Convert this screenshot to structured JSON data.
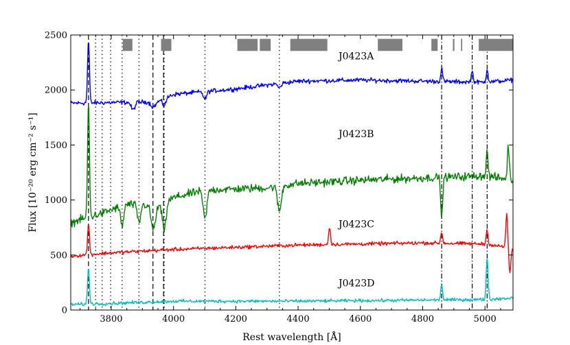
{
  "chart_data": {
    "type": "line",
    "title": "",
    "xlabel": "Rest wavelength [Å]",
    "ylabel": "Flux [10⁻²⁰ erg cm⁻² s⁻¹]",
    "xlim": [
      3670,
      5090
    ],
    "ylim": [
      0,
      2500
    ],
    "xticks": [
      3800,
      4000,
      4200,
      4400,
      4600,
      4800,
      5000
    ],
    "yticks": [
      0,
      500,
      1000,
      1500,
      2000,
      2500
    ],
    "grid": false,
    "series": [
      {
        "name": "J0423A",
        "color": "#0000ff",
        "label_at": {
          "x": 4530,
          "y": 2280
        },
        "baseline": [
          [
            3670,
            1880
          ],
          [
            3900,
            1890
          ],
          [
            3950,
            1900
          ],
          [
            4000,
            1960
          ],
          [
            4200,
            2010
          ],
          [
            4400,
            2080
          ],
          [
            4600,
            2090
          ],
          [
            4800,
            2080
          ],
          [
            5000,
            2070
          ],
          [
            5090,
            2090
          ]
        ],
        "noise": 30,
        "features": [
          {
            "x": 3727,
            "h": 570,
            "w": 3
          },
          {
            "x": 3870,
            "h": -70,
            "w": 6
          },
          {
            "x": 3935,
            "h": -50,
            "w": 8
          },
          {
            "x": 3970,
            "h": -60,
            "w": 6
          },
          {
            "x": 4101,
            "h": -70,
            "w": 5
          },
          {
            "x": 4340,
            "h": -40,
            "w": 5
          },
          {
            "x": 4861,
            "h": 120,
            "w": 3
          },
          {
            "x": 4959,
            "h": 100,
            "w": 3
          },
          {
            "x": 5007,
            "h": 120,
            "w": 3
          }
        ]
      },
      {
        "name": "J0423B",
        "color": "#008000",
        "label_at": {
          "x": 4530,
          "y": 1570
        },
        "baseline": [
          [
            3670,
            790
          ],
          [
            3700,
            820
          ],
          [
            3760,
            870
          ],
          [
            3850,
            960
          ],
          [
            3950,
            950
          ],
          [
            4000,
            1020
          ],
          [
            4100,
            1090
          ],
          [
            4300,
            1110
          ],
          [
            4400,
            1150
          ],
          [
            4600,
            1180
          ],
          [
            4800,
            1200
          ],
          [
            5000,
            1220
          ],
          [
            5090,
            1180
          ]
        ],
        "noise": 55,
        "features": [
          {
            "x": 3727,
            "h": 1050,
            "w": 3
          },
          {
            "x": 3835,
            "h": -180,
            "w": 5
          },
          {
            "x": 3889,
            "h": -170,
            "w": 5
          },
          {
            "x": 3935,
            "h": -220,
            "w": 7
          },
          {
            "x": 3970,
            "h": -250,
            "w": 6
          },
          {
            "x": 4101,
            "h": -260,
            "w": 6
          },
          {
            "x": 4340,
            "h": -230,
            "w": 6
          },
          {
            "x": 4861,
            "h": -380,
            "w": 3
          },
          {
            "x": 5007,
            "h": 220,
            "w": 3
          },
          {
            "x": 5075,
            "h": 300,
            "w": 3
          }
        ]
      },
      {
        "name": "J0423C",
        "color": "#ff0000",
        "label_at": {
          "x": 4530,
          "y": 750
        },
        "baseline": [
          [
            3670,
            490
          ],
          [
            3800,
            520
          ],
          [
            4000,
            550
          ],
          [
            4200,
            570
          ],
          [
            4400,
            590
          ],
          [
            4600,
            600
          ],
          [
            4800,
            610
          ],
          [
            5000,
            600
          ],
          [
            5090,
            560
          ]
        ],
        "noise": 25,
        "features": [
          {
            "x": 3727,
            "h": 280,
            "w": 3
          },
          {
            "x": 4501,
            "h": 160,
            "w": 3
          },
          {
            "x": 4861,
            "h": 100,
            "w": 3
          },
          {
            "x": 5007,
            "h": 130,
            "w": 3
          },
          {
            "x": 5070,
            "h": 300,
            "w": 3
          },
          {
            "x": 5080,
            "h": -240,
            "w": 3
          }
        ]
      },
      {
        "name": "J0423D",
        "color": "#00bfbf",
        "label_at": {
          "x": 4530,
          "y": 215
        },
        "baseline": [
          [
            3670,
            50
          ],
          [
            3800,
            60
          ],
          [
            4000,
            80
          ],
          [
            4200,
            80
          ],
          [
            4400,
            80
          ],
          [
            4600,
            85
          ],
          [
            4800,
            90
          ],
          [
            5000,
            95
          ],
          [
            5090,
            110
          ]
        ],
        "noise": 22,
        "features": [
          {
            "x": 3727,
            "h": 330,
            "w": 3
          },
          {
            "x": 4861,
            "h": 140,
            "w": 3
          },
          {
            "x": 5007,
            "h": 380,
            "w": 3
          }
        ]
      }
    ],
    "reference_lines": [
      {
        "x": 3727,
        "style": "dashed"
      },
      {
        "x": 3750,
        "style": "dotted"
      },
      {
        "x": 3771,
        "style": "dotted"
      },
      {
        "x": 3798,
        "style": "dotted"
      },
      {
        "x": 3835,
        "style": "dotted"
      },
      {
        "x": 3889,
        "style": "dotted"
      },
      {
        "x": 3934,
        "style": "dashed"
      },
      {
        "x": 3968,
        "style": "dashed"
      },
      {
        "x": 3970,
        "style": "dotted"
      },
      {
        "x": 4101,
        "style": "dotted"
      },
      {
        "x": 4340,
        "style": "dotted"
      },
      {
        "x": 4861,
        "style": "dashdot"
      },
      {
        "x": 4959,
        "style": "dashdot"
      },
      {
        "x": 5007,
        "style": "dashdot"
      }
    ],
    "masked_regions": [
      [
        3837,
        3868
      ],
      [
        3960,
        3993
      ],
      [
        4205,
        4270
      ],
      [
        4277,
        4312
      ],
      [
        4375,
        4494
      ],
      [
        4656,
        4735
      ],
      [
        4828,
        4848
      ],
      [
        4897,
        4902
      ],
      [
        4923,
        4927
      ],
      [
        4980,
        5090
      ]
    ],
    "masked_color": "#808080"
  }
}
